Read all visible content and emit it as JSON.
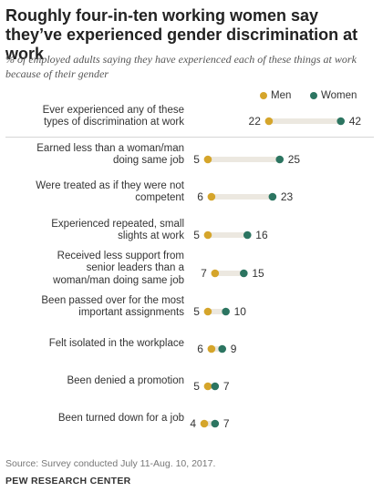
{
  "title": "Roughly four-in-ten working women say they’ve experienced gender discrimination at work",
  "subtitle": "% of employed adults saying they have experienced each of these things at work because of their gender",
  "source": "Source: Survey conducted July 11-Aug. 10, 2017.",
  "brand": "PEW RESEARCH CENTER",
  "colors": {
    "men": "#d5a52b",
    "women": "#2c7561",
    "connector": "#ece8e0"
  },
  "chart_data": {
    "type": "dot",
    "legend": [
      "Men",
      "Women"
    ],
    "legend_position": "top-right",
    "xlim": [
      0,
      45
    ],
    "categories": [
      "Ever experienced any of these types of discrimination at work",
      "Earned less than a woman/man doing same job",
      "Were treated as if they were not competent",
      "Experienced repeated, small slights at work",
      "Received less support from senior leaders than a woman/man doing same job",
      "Been passed over for the most important assignments",
      "Felt isolated in the workplace",
      "Been denied a promotion",
      "Been turned down for a job"
    ],
    "label_lines": [
      [
        "Ever experienced any of these",
        "types of discrimination at work"
      ],
      [
        "Earned less than a woman/man",
        "doing same job"
      ],
      [
        "Were treated as if they were not",
        "competent"
      ],
      [
        "Experienced repeated, small",
        "slights at work"
      ],
      [
        "Received less support from",
        "senior leaders than a",
        "woman/man doing same job"
      ],
      [
        "Been passed over for the most",
        "important assignments"
      ],
      [
        "Felt isolated in the workplace"
      ],
      [
        "Been denied a promotion"
      ],
      [
        "Been turned down for a job"
      ]
    ],
    "series": [
      {
        "name": "Men",
        "values": [
          22,
          5,
          6,
          5,
          7,
          5,
          6,
          5,
          4
        ]
      },
      {
        "name": "Women",
        "values": [
          42,
          25,
          23,
          16,
          15,
          10,
          9,
          7,
          7
        ]
      }
    ]
  }
}
